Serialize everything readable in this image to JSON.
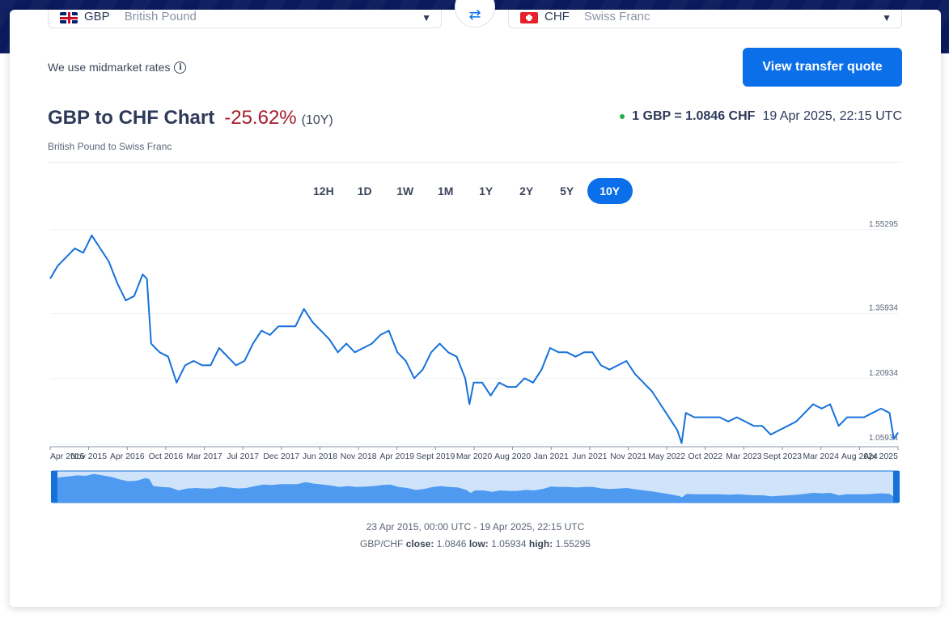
{
  "converter": {
    "from": {
      "code": "GBP",
      "name": "British Pound",
      "flag": "gb-flag-icon"
    },
    "to": {
      "code": "CHF",
      "name": "Swiss Franc",
      "flag": "ch-flag-icon"
    },
    "swap_icon": "swap-arrows-icon"
  },
  "midmarket_text": "We use midmarket rates",
  "quote_button": "View transfer quote",
  "chart_header": {
    "title": "GBP to CHF Chart",
    "change": "-25.62%",
    "period": "(10Y)",
    "subtitle": "British Pound to Swiss Franc",
    "rate": "1 GBP = 1.0846 CHF",
    "timestamp": "19 Apr 2025, 22:15 UTC"
  },
  "periods": [
    "12H",
    "1D",
    "1W",
    "1M",
    "1Y",
    "2Y",
    "5Y",
    "10Y"
  ],
  "active_period": "10Y",
  "colors": {
    "accent": "#0a6fe8",
    "negative": "#a51c2c",
    "live_dot": "#20b04b",
    "line": "#1671d9"
  },
  "chart_data": {
    "type": "line",
    "title": "GBP to CHF Chart",
    "y_ticks": [
      "1.55295",
      "1.35934",
      "1.20934",
      "1.05934"
    ],
    "ylim": [
      1.05934,
      1.55295
    ],
    "x_ticks": [
      "Apr 2015",
      "Nov 2015",
      "Apr 2016",
      "Oct 2016",
      "Mar 2017",
      "Jul 2017",
      "Dec 2017",
      "Jun 2018",
      "Nov 2018",
      "Apr 2019",
      "Sept 2019",
      "Mar 2020",
      "Aug 2020",
      "Jan 2021",
      "Jun 2021",
      "Nov 2021",
      "May 2022",
      "Oct 2022",
      "Mar 2023",
      "Sept 2023",
      "Mar 2024",
      "Aug 2024",
      "Apr 2025"
    ],
    "grid": true,
    "series": [
      {
        "values": [
          [
            2015.31,
            1.44
          ],
          [
            2015.4,
            1.47
          ],
          [
            2015.5,
            1.49
          ],
          [
            2015.6,
            1.51
          ],
          [
            2015.7,
            1.5
          ],
          [
            2015.8,
            1.54
          ],
          [
            2015.9,
            1.51
          ],
          [
            2016.0,
            1.48
          ],
          [
            2016.1,
            1.43
          ],
          [
            2016.2,
            1.39
          ],
          [
            2016.3,
            1.4
          ],
          [
            2016.4,
            1.45
          ],
          [
            2016.45,
            1.44
          ],
          [
            2016.5,
            1.29
          ],
          [
            2016.6,
            1.27
          ],
          [
            2016.7,
            1.26
          ],
          [
            2016.8,
            1.2
          ],
          [
            2016.9,
            1.24
          ],
          [
            2017.0,
            1.25
          ],
          [
            2017.1,
            1.24
          ],
          [
            2017.2,
            1.24
          ],
          [
            2017.3,
            1.28
          ],
          [
            2017.4,
            1.26
          ],
          [
            2017.5,
            1.24
          ],
          [
            2017.6,
            1.25
          ],
          [
            2017.7,
            1.29
          ],
          [
            2017.8,
            1.32
          ],
          [
            2017.9,
            1.31
          ],
          [
            2018.0,
            1.33
          ],
          [
            2018.1,
            1.33
          ],
          [
            2018.2,
            1.33
          ],
          [
            2018.3,
            1.37
          ],
          [
            2018.4,
            1.34
          ],
          [
            2018.5,
            1.32
          ],
          [
            2018.6,
            1.3
          ],
          [
            2018.7,
            1.27
          ],
          [
            2018.8,
            1.29
          ],
          [
            2018.9,
            1.27
          ],
          [
            2019.0,
            1.28
          ],
          [
            2019.1,
            1.29
          ],
          [
            2019.2,
            1.31
          ],
          [
            2019.3,
            1.32
          ],
          [
            2019.4,
            1.27
          ],
          [
            2019.5,
            1.25
          ],
          [
            2019.6,
            1.21
          ],
          [
            2019.7,
            1.23
          ],
          [
            2019.8,
            1.27
          ],
          [
            2019.9,
            1.29
          ],
          [
            2020.0,
            1.27
          ],
          [
            2020.1,
            1.26
          ],
          [
            2020.2,
            1.21
          ],
          [
            2020.25,
            1.15
          ],
          [
            2020.3,
            1.2
          ],
          [
            2020.4,
            1.2
          ],
          [
            2020.5,
            1.17
          ],
          [
            2020.6,
            1.2
          ],
          [
            2020.7,
            1.19
          ],
          [
            2020.8,
            1.19
          ],
          [
            2020.9,
            1.21
          ],
          [
            2021.0,
            1.2
          ],
          [
            2021.1,
            1.23
          ],
          [
            2021.2,
            1.28
          ],
          [
            2021.3,
            1.27
          ],
          [
            2021.4,
            1.27
          ],
          [
            2021.5,
            1.26
          ],
          [
            2021.6,
            1.27
          ],
          [
            2021.7,
            1.27
          ],
          [
            2021.8,
            1.24
          ],
          [
            2021.9,
            1.23
          ],
          [
            2022.0,
            1.24
          ],
          [
            2022.1,
            1.25
          ],
          [
            2022.2,
            1.22
          ],
          [
            2022.3,
            1.2
          ],
          [
            2022.4,
            1.18
          ],
          [
            2022.5,
            1.15
          ],
          [
            2022.6,
            1.12
          ],
          [
            2022.7,
            1.09
          ],
          [
            2022.75,
            1.06
          ],
          [
            2022.8,
            1.13
          ],
          [
            2022.9,
            1.12
          ],
          [
            2023.0,
            1.12
          ],
          [
            2023.1,
            1.12
          ],
          [
            2023.2,
            1.12
          ],
          [
            2023.3,
            1.11
          ],
          [
            2023.4,
            1.12
          ],
          [
            2023.5,
            1.11
          ],
          [
            2023.6,
            1.1
          ],
          [
            2023.7,
            1.1
          ],
          [
            2023.8,
            1.08
          ],
          [
            2023.9,
            1.09
          ],
          [
            2024.0,
            1.1
          ],
          [
            2024.1,
            1.11
          ],
          [
            2024.2,
            1.13
          ],
          [
            2024.3,
            1.15
          ],
          [
            2024.4,
            1.14
          ],
          [
            2024.5,
            1.15
          ],
          [
            2024.6,
            1.1
          ],
          [
            2024.7,
            1.12
          ],
          [
            2024.8,
            1.12
          ],
          [
            2024.9,
            1.12
          ],
          [
            2025.0,
            1.13
          ],
          [
            2025.1,
            1.14
          ],
          [
            2025.2,
            1.13
          ],
          [
            2025.25,
            1.07
          ],
          [
            2025.3,
            1.0846
          ]
        ]
      }
    ],
    "range_text": "23 Apr 2015, 00:00 UTC - 19 Apr 2025, 22:15 UTC",
    "stats": {
      "pair": "GBP/CHF",
      "close_label": "close:",
      "close": "1.0846",
      "low_label": "low:",
      "low": "1.05934",
      "high_label": "high:",
      "high": "1.55295"
    }
  }
}
